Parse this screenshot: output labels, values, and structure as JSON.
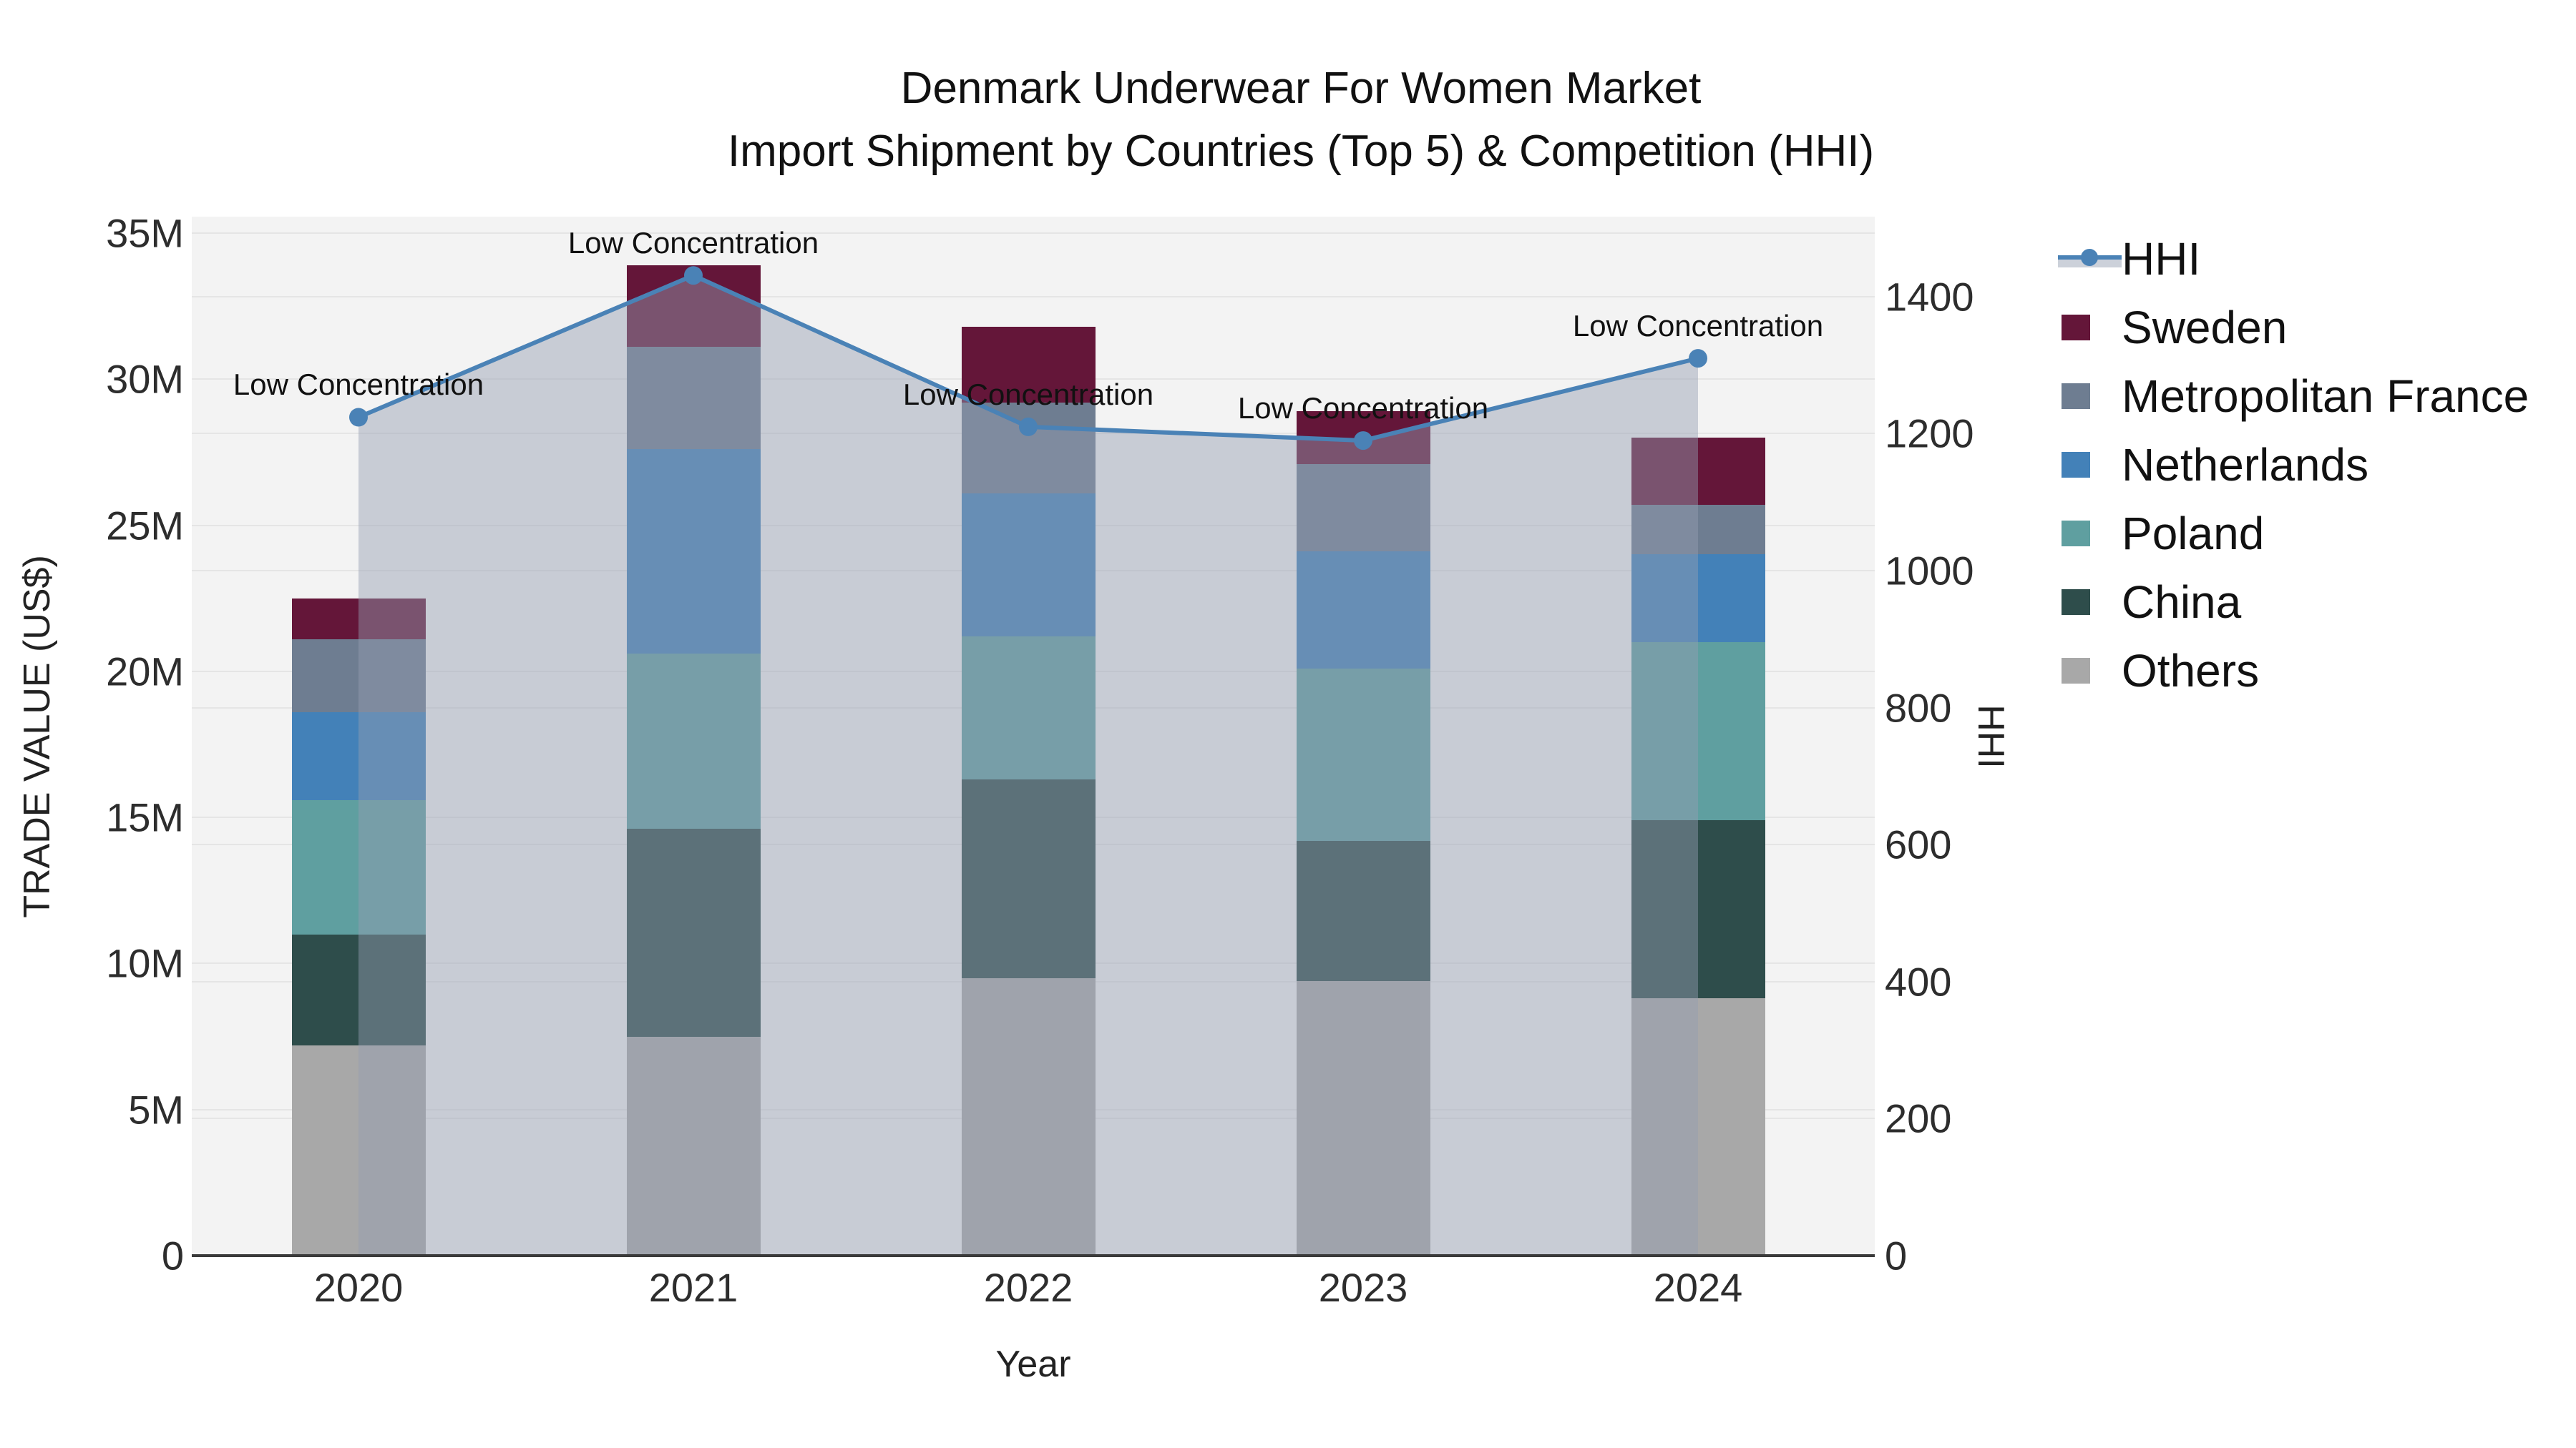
{
  "title": {
    "line1": "Denmark Underwear For Women Market",
    "line2": "Import Shipment by Countries (Top 5) & Competition (HHI)"
  },
  "axes": {
    "x": {
      "title": "Year",
      "tick_labels": [
        "2020",
        "2021",
        "2022",
        "2023",
        "2024"
      ]
    },
    "y_left": {
      "title": "TRADE VALUE (US$)",
      "tick_labels": [
        "0",
        "5M",
        "10M",
        "15M",
        "20M",
        "25M",
        "30M",
        "35M"
      ],
      "tick_values_millions": [
        0,
        5,
        10,
        15,
        20,
        25,
        30,
        35
      ]
    },
    "y_right": {
      "title": "HHI",
      "tick_labels": [
        "0",
        "200",
        "400",
        "600",
        "800",
        "1000",
        "1200",
        "1400"
      ],
      "tick_values": [
        0,
        200,
        400,
        600,
        800,
        1000,
        1200,
        1400
      ]
    }
  },
  "legend": {
    "items": [
      {
        "label": "HHI",
        "type": "line",
        "color": "#4a82b6",
        "band_color": "#ccd1da"
      },
      {
        "label": "Sweden",
        "type": "box",
        "color": "#641639"
      },
      {
        "label": "Metropolitan France",
        "type": "box",
        "color": "#6e7d91"
      },
      {
        "label": "Netherlands",
        "type": "box",
        "color": "#4381b8"
      },
      {
        "label": "Poland",
        "type": "box",
        "color": "#5f9fa0"
      },
      {
        "label": "China",
        "type": "box",
        "color": "#2e4d4b"
      },
      {
        "label": "Others",
        "type": "box",
        "color": "#a8a8a8"
      }
    ]
  },
  "chart_data": {
    "type": "bar",
    "subtype": "stacked-bars-with-line-overlay",
    "categories": [
      "2020",
      "2021",
      "2022",
      "2023",
      "2024"
    ],
    "bar_unit": "million US$",
    "series": [
      {
        "name": "Others",
        "color": "#a8a8a8",
        "values": [
          7.2,
          7.5,
          9.5,
          9.4,
          8.8
        ]
      },
      {
        "name": "China",
        "color": "#2e4d4b",
        "values": [
          3.8,
          7.1,
          6.8,
          4.8,
          6.1
        ]
      },
      {
        "name": "Poland",
        "color": "#5f9fa0",
        "values": [
          4.6,
          6.0,
          4.9,
          5.9,
          6.1
        ]
      },
      {
        "name": "Netherlands",
        "color": "#4381b8",
        "values": [
          3.0,
          7.0,
          4.9,
          4.0,
          3.0
        ]
      },
      {
        "name": "Metropolitan France",
        "color": "#6e7d91",
        "values": [
          2.5,
          3.5,
          3.1,
          3.0,
          1.7
        ]
      },
      {
        "name": "Sweden",
        "color": "#641639",
        "values": [
          1.4,
          2.8,
          2.6,
          1.8,
          2.3
        ]
      }
    ],
    "bar_totals_millions": [
      22.5,
      33.9,
      31.8,
      28.9,
      28.0
    ],
    "line_series": {
      "name": "HHI",
      "axis": "right",
      "color": "#4a82b6",
      "area_fill": "rgba(148,157,178,0.45)",
      "values": [
        1224,
        1431,
        1210,
        1190,
        1310
      ]
    },
    "ylim_left_millions": [
      0,
      35
    ],
    "ylim_right": [
      0,
      1500
    ],
    "grid": true,
    "legend_position": "right",
    "annotations": [
      {
        "category": "2020",
        "text": "Low Concentration"
      },
      {
        "category": "2021",
        "text": "Low Concentration"
      },
      {
        "category": "2022",
        "text": "Low Concentration"
      },
      {
        "category": "2023",
        "text": "Low Concentration"
      },
      {
        "category": "2024",
        "text": "Low Concentration"
      }
    ]
  }
}
